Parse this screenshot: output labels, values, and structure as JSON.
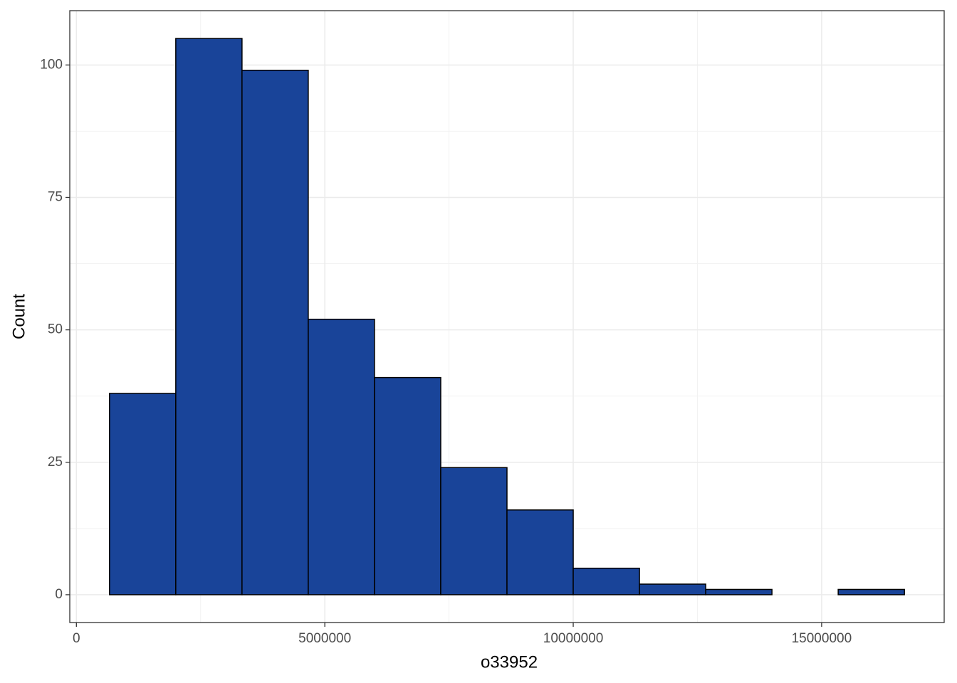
{
  "chart_data": {
    "type": "histogram",
    "x_label": "o33952",
    "y_label": "Count",
    "bins": [
      666667,
      2000000,
      3333333,
      4666667,
      6000000,
      7333333,
      8666667,
      10000000,
      11333333,
      12666667,
      14000000,
      15333333,
      16666667
    ],
    "values": [
      38,
      105,
      99,
      52,
      41,
      24,
      16,
      5,
      2,
      1,
      0,
      1
    ],
    "color": "#194499",
    "edge_color": "#000000",
    "xlim": [
      -133333,
      17466667
    ],
    "ylim": [
      -5.25,
      110.25
    ],
    "xticks": [
      0,
      5000000,
      10000000,
      15000000
    ],
    "yticks": [
      0,
      25,
      50,
      75,
      100
    ],
    "x_minor_ticks": [
      2500000,
      7500000,
      12500000
    ],
    "y_minor_ticks": [
      12.5,
      37.5,
      62.5,
      87.5
    ],
    "grid": true
  }
}
